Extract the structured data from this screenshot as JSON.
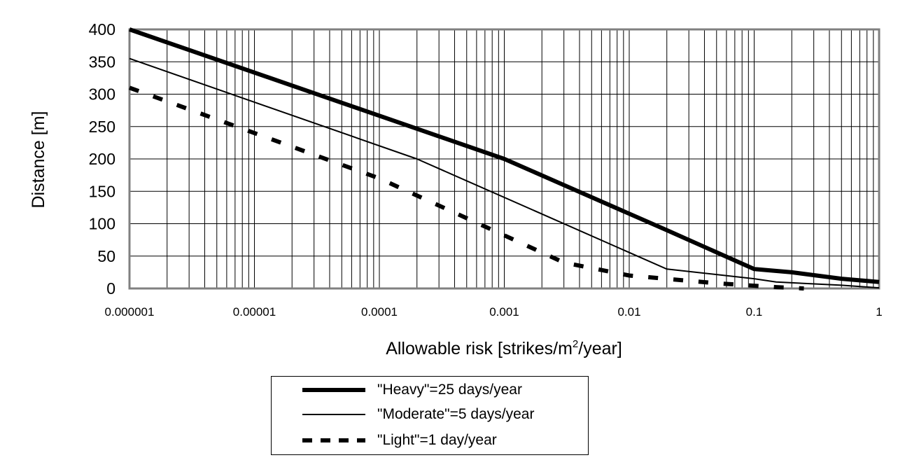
{
  "chart_data": {
    "type": "line",
    "title": "",
    "ylabel": "Distance [m]",
    "xlabel_parts": {
      "before": "Allowable risk [strikes/m",
      "sup": "2",
      "after": "/year]"
    },
    "xscale": "log",
    "xlim": [
      1e-06,
      1
    ],
    "ylim": [
      0,
      400
    ],
    "x_tick_labels": [
      "0.000001",
      "0.00001",
      "0.0001",
      "0.001",
      "0.01",
      "0.1",
      "1"
    ],
    "x_tick_values": [
      1e-06,
      1e-05,
      0.0001,
      0.001,
      0.01,
      0.1,
      1
    ],
    "y_ticks": [
      0,
      50,
      100,
      150,
      200,
      250,
      300,
      350,
      400
    ],
    "grid": true,
    "legend_position": "below",
    "series": [
      {
        "name": "\"Heavy\"=25 days/year",
        "style": "thick",
        "points": [
          [
            1e-06,
            400
          ],
          [
            0.001,
            200
          ],
          [
            0.02,
            90
          ],
          [
            0.1,
            30
          ],
          [
            0.2,
            25
          ],
          [
            0.5,
            15
          ],
          [
            1,
            10
          ]
        ]
      },
      {
        "name": "\"Moderate\"=5 days/year",
        "style": "thin",
        "points": [
          [
            1e-06,
            355
          ],
          [
            0.0002,
            200
          ],
          [
            0.02,
            30
          ],
          [
            0.1,
            15
          ],
          [
            0.15,
            10
          ],
          [
            0.5,
            5
          ],
          [
            1,
            1
          ]
        ]
      },
      {
        "name": "\"Light\"=1 day/year",
        "style": "dashed",
        "points": [
          [
            1e-06,
            310
          ],
          [
            0.0001,
            170
          ],
          [
            0.003,
            40
          ],
          [
            0.01,
            20
          ],
          [
            0.05,
            8
          ],
          [
            0.15,
            2
          ],
          [
            0.25,
            0
          ]
        ]
      }
    ]
  }
}
